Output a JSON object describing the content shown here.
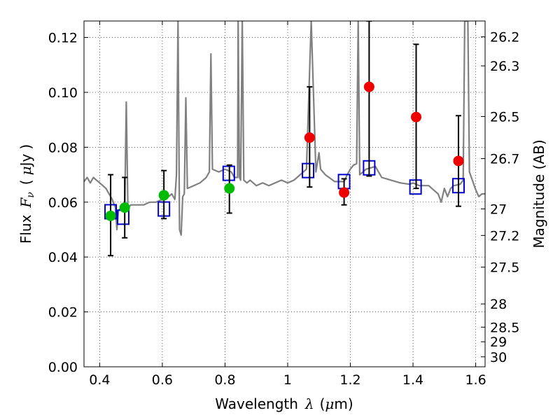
{
  "chart_data": {
    "type": "scatter",
    "xlabel": {
      "prefix": "Wavelength",
      "symbol": "λ",
      "open": "(",
      "unit_mu": "μ",
      "unit_rest": "m",
      "close": ")"
    },
    "ylabel": {
      "prefix": "Flux",
      "symbol": "F",
      "subscript": "ν",
      "open": "(",
      "unit_mu": "μ",
      "unit_rest": "Jy",
      "close": ")"
    },
    "y2label": "Magnitude (AB)",
    "xlim": [
      0.35,
      1.63
    ],
    "ylim": [
      0.0,
      0.126
    ],
    "grid": true,
    "x_ticks": [
      {
        "value": 0.4,
        "label": "0.4"
      },
      {
        "value": 0.6,
        "label": "0.6"
      },
      {
        "value": 0.8,
        "label": "0.8"
      },
      {
        "value": 1.0,
        "label": "1"
      },
      {
        "value": 1.2,
        "label": "1.2"
      },
      {
        "value": 1.4,
        "label": "1.4"
      },
      {
        "value": 1.6,
        "label": "1.6"
      }
    ],
    "y_ticks": [
      {
        "value": 0.0,
        "label": "0.00"
      },
      {
        "value": 0.02,
        "label": "0.02"
      },
      {
        "value": 0.04,
        "label": "0.04"
      },
      {
        "value": 0.06,
        "label": "0.06"
      },
      {
        "value": 0.08,
        "label": "0.08"
      },
      {
        "value": 0.1,
        "label": "0.10"
      },
      {
        "value": 0.12,
        "label": "0.12"
      }
    ],
    "magnitude_ticks": [
      {
        "mag": 26.2,
        "label": "26.2"
      },
      {
        "mag": 26.3,
        "label": "26.3"
      },
      {
        "mag": 26.5,
        "label": "26.5"
      },
      {
        "mag": 26.7,
        "label": "26.7"
      },
      {
        "mag": 27.0,
        "label": "27"
      },
      {
        "mag": 27.2,
        "label": "27.2"
      },
      {
        "mag": 27.5,
        "label": "27.5"
      },
      {
        "mag": 28.0,
        "label": "28"
      },
      {
        "mag": 28.5,
        "label": "28.5"
      },
      {
        "mag": 29.0,
        "label": "29"
      },
      {
        "mag": 30.0,
        "label": "30"
      }
    ],
    "series": [
      {
        "name": "model_spectrum",
        "kind": "line",
        "color": "#808080",
        "points": [
          [
            0.35,
            0.0675
          ],
          [
            0.36,
            0.069
          ],
          [
            0.37,
            0.067
          ],
          [
            0.38,
            0.069
          ],
          [
            0.39,
            0.068
          ],
          [
            0.4,
            0.067
          ],
          [
            0.41,
            0.066
          ],
          [
            0.42,
            0.065
          ],
          [
            0.43,
            0.063
          ],
          [
            0.44,
            0.061
          ],
          [
            0.45,
            0.058
          ],
          [
            0.455,
            0.05
          ],
          [
            0.46,
            0.057
          ],
          [
            0.47,
            0.058
          ],
          [
            0.475,
            0.057
          ],
          [
            0.48,
            0.058
          ],
          [
            0.485,
            0.0965
          ],
          [
            0.49,
            0.058
          ],
          [
            0.5,
            0.059
          ],
          [
            0.52,
            0.059
          ],
          [
            0.54,
            0.059
          ],
          [
            0.56,
            0.06
          ],
          [
            0.58,
            0.06
          ],
          [
            0.6,
            0.061
          ],
          [
            0.62,
            0.062
          ],
          [
            0.63,
            0.063
          ],
          [
            0.64,
            0.061
          ],
          [
            0.645,
            0.07
          ],
          [
            0.65,
            0.126
          ],
          [
            0.655,
            0.05
          ],
          [
            0.66,
            0.048
          ],
          [
            0.665,
            0.062
          ],
          [
            0.67,
            0.063
          ],
          [
            0.675,
            0.098
          ],
          [
            0.68,
            0.065
          ],
          [
            0.7,
            0.066
          ],
          [
            0.72,
            0.067
          ],
          [
            0.74,
            0.069
          ],
          [
            0.75,
            0.071
          ],
          [
            0.755,
            0.114
          ],
          [
            0.76,
            0.072
          ],
          [
            0.78,
            0.071
          ],
          [
            0.8,
            0.072
          ],
          [
            0.82,
            0.071
          ],
          [
            0.83,
            0.069
          ],
          [
            0.84,
            0.069
          ],
          [
            0.842,
            0.126
          ],
          [
            0.846,
            0.069
          ],
          [
            0.85,
            0.068
          ],
          [
            0.855,
            0.126
          ],
          [
            0.86,
            0.068
          ],
          [
            0.87,
            0.067
          ],
          [
            0.88,
            0.068
          ],
          [
            0.9,
            0.066
          ],
          [
            0.92,
            0.067
          ],
          [
            0.94,
            0.066
          ],
          [
            0.96,
            0.067
          ],
          [
            0.98,
            0.068
          ],
          [
            1.0,
            0.067
          ],
          [
            1.02,
            0.068
          ],
          [
            1.03,
            0.069
          ],
          [
            1.04,
            0.07
          ],
          [
            1.05,
            0.071
          ],
          [
            1.06,
            0.072
          ],
          [
            1.075,
            0.126
          ],
          [
            1.09,
            0.071
          ],
          [
            1.1,
            0.078
          ],
          [
            1.105,
            0.072
          ],
          [
            1.12,
            0.07
          ],
          [
            1.15,
            0.0675
          ],
          [
            1.18,
            0.0675
          ],
          [
            1.19,
            0.07
          ],
          [
            1.2,
            0.072
          ],
          [
            1.21,
            0.0735
          ],
          [
            1.22,
            0.074
          ],
          [
            1.225,
            0.126
          ],
          [
            1.23,
            0.07
          ],
          [
            1.25,
            0.072
          ],
          [
            1.28,
            0.073
          ],
          [
            1.3,
            0.069
          ],
          [
            1.33,
            0.068
          ],
          [
            1.36,
            0.067
          ],
          [
            1.39,
            0.0665
          ],
          [
            1.4,
            0.067
          ],
          [
            1.42,
            0.066
          ],
          [
            1.45,
            0.066
          ],
          [
            1.47,
            0.064
          ],
          [
            1.48,
            0.063
          ],
          [
            1.49,
            0.06
          ],
          [
            1.5,
            0.065
          ],
          [
            1.51,
            0.062
          ],
          [
            1.52,
            0.065
          ],
          [
            1.53,
            0.066
          ],
          [
            1.55,
            0.0665
          ],
          [
            1.56,
            0.068
          ],
          [
            1.565,
            0.126
          ],
          [
            1.575,
            0.126
          ],
          [
            1.58,
            0.071
          ],
          [
            1.6,
            0.0645
          ],
          [
            1.61,
            0.062
          ],
          [
            1.62,
            0.063
          ],
          [
            1.63,
            0.063
          ]
        ]
      },
      {
        "name": "model_band_fluxes",
        "kind": "open_square",
        "color": "#0000cc",
        "points": [
          [
            0.435,
            0.0565
          ],
          [
            0.475,
            0.0545
          ],
          [
            0.605,
            0.0575
          ],
          [
            0.812,
            0.0705
          ],
          [
            1.065,
            0.0715
          ],
          [
            1.18,
            0.0675
          ],
          [
            1.26,
            0.0725
          ],
          [
            1.408,
            0.0655
          ],
          [
            1.545,
            0.066
          ]
        ]
      },
      {
        "name": "observed_optical",
        "kind": "filled_circle",
        "color": "#00bb00",
        "points": [
          {
            "x": 0.435,
            "y": 0.055,
            "err_lo": 0.0405,
            "err_hi": 0.07
          },
          {
            "x": 0.48,
            "y": 0.058,
            "err_lo": 0.047,
            "err_hi": 0.069
          },
          {
            "x": 0.605,
            "y": 0.0625,
            "err_lo": 0.054,
            "err_hi": 0.0715
          },
          {
            "x": 0.814,
            "y": 0.065,
            "err_lo": 0.056,
            "err_hi": 0.0735
          }
        ]
      },
      {
        "name": "observed_nir",
        "kind": "filled_circle",
        "color": "#ee0000",
        "points": [
          {
            "x": 1.07,
            "y": 0.0835,
            "err_lo": 0.0655,
            "err_hi": 0.102
          },
          {
            "x": 1.18,
            "y": 0.0635,
            "err_lo": 0.059,
            "err_hi": 0.0685
          },
          {
            "x": 1.26,
            "y": 0.102,
            "err_lo": 0.0695,
            "err_hi": 0.126
          },
          {
            "x": 1.41,
            "y": 0.091,
            "err_lo": 0.065,
            "err_hi": 0.1175
          },
          {
            "x": 1.545,
            "y": 0.075,
            "err_lo": 0.0585,
            "err_hi": 0.0915
          }
        ]
      }
    ]
  }
}
